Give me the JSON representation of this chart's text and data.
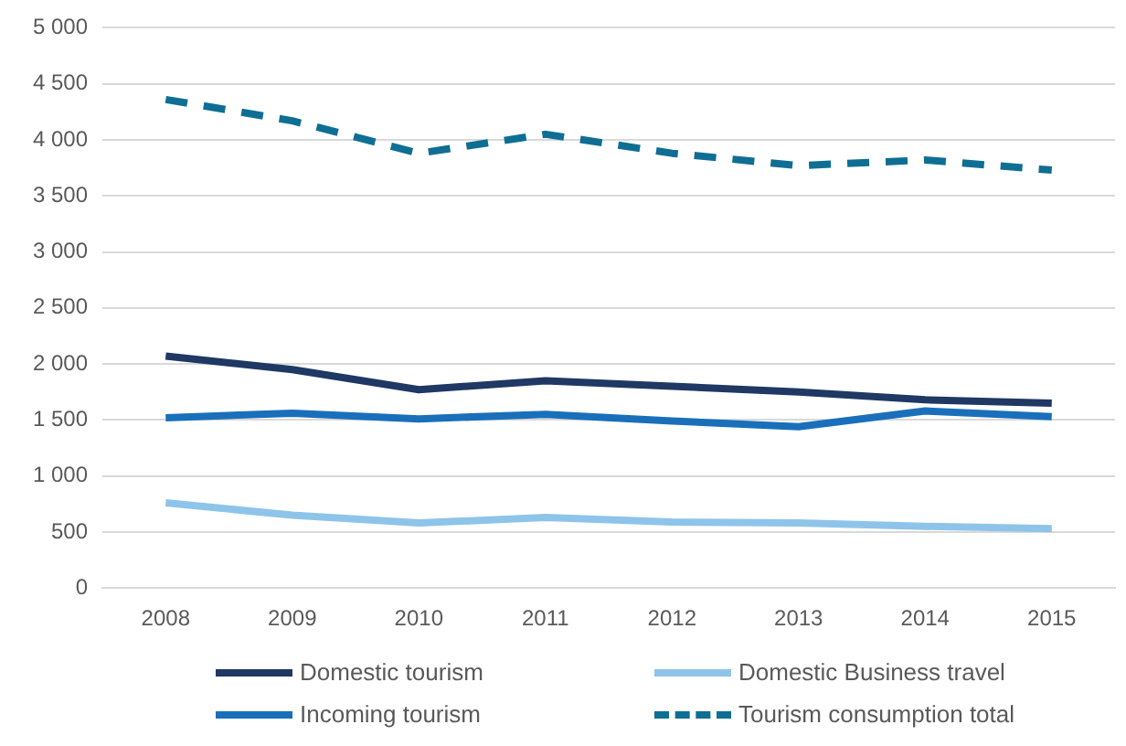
{
  "chart_data": {
    "type": "line",
    "categories": [
      "2008",
      "2009",
      "2010",
      "2011",
      "2012",
      "2013",
      "2014",
      "2015"
    ],
    "series": [
      {
        "name": "Domestic tourism",
        "color": "#1f3864",
        "values": [
          2070,
          1950,
          1770,
          1850,
          1800,
          1750,
          1680,
          1650
        ]
      },
      {
        "name": "Domestic Business travel",
        "color": "#8fc4ea",
        "values": [
          760,
          650,
          580,
          630,
          590,
          580,
          550,
          530
        ]
      },
      {
        "name": "Incoming tourism",
        "color": "#1a6fba",
        "values": [
          1520,
          1560,
          1510,
          1550,
          1490,
          1440,
          1580,
          1530
        ]
      },
      {
        "name": "Tourism consumption total",
        "color": "#0f6e94",
        "line_style": "dashed",
        "values": [
          4360,
          4170,
          3880,
          4050,
          3880,
          3770,
          3820,
          3730
        ]
      }
    ],
    "ylim": [
      0,
      5000
    ],
    "yticks": [
      0,
      500,
      {
        "value": 1000,
        "label": "1 000"
      },
      {
        "value": 1500,
        "label": "1 500"
      },
      {
        "value": 2000,
        "label": "2 000"
      },
      {
        "value": 2500,
        "label": "2 500"
      },
      {
        "value": 3000,
        "label": "3 000"
      },
      {
        "value": 3500,
        "label": "3 500"
      },
      {
        "value": 4000,
        "label": "4 000"
      },
      {
        "value": 4500,
        "label": "4 500"
      },
      {
        "value": 5000,
        "label": "5 000"
      }
    ],
    "grid": "y",
    "legend": "bottom",
    "marker": "none",
    "line_style": "solid"
  }
}
